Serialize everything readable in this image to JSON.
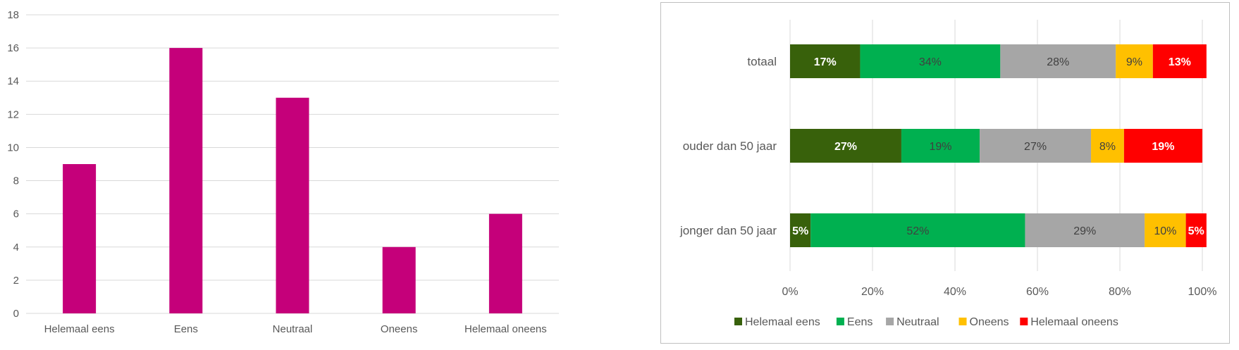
{
  "chart_data": [
    {
      "type": "bar",
      "categories": [
        "Helemaal eens",
        "Eens",
        "Neutraal",
        "Oneens",
        "Helemaal oneens"
      ],
      "values": [
        9,
        16,
        13,
        4,
        6
      ],
      "ylim": [
        0,
        18
      ],
      "yticks": [
        "0",
        "2",
        "4",
        "6",
        "8",
        "10",
        "12",
        "14",
        "16",
        "18"
      ],
      "grid": true,
      "color": "#C5007A"
    },
    {
      "type": "bar",
      "orientation": "horizontal",
      "stacked": "percent",
      "categories": [
        "totaal",
        "ouder dan 50 jaar",
        "jonger dan 50 jaar"
      ],
      "series": [
        {
          "name": "Helemaal eens",
          "color": "#38610B",
          "values": [
            17,
            27,
            5
          ],
          "labels": [
            "17%",
            "27%",
            "5%"
          ]
        },
        {
          "name": "Eens",
          "color": "#00B050",
          "values": [
            34,
            19,
            52
          ],
          "labels": [
            "34%",
            "19%",
            "52%"
          ]
        },
        {
          "name": "Neutraal",
          "color": "#A6A6A6",
          "values": [
            28,
            27,
            29
          ],
          "labels": [
            "28%",
            "27%",
            "29%"
          ]
        },
        {
          "name": "Oneens",
          "color": "#FFC000",
          "values": [
            9,
            8,
            10
          ],
          "labels": [
            "9%",
            "8%",
            "10%"
          ]
        },
        {
          "name": "Helemaal oneens",
          "color": "#FF0000",
          "values": [
            13,
            19,
            5
          ],
          "labels": [
            "13%",
            "19%",
            "5%"
          ]
        }
      ],
      "xlim": [
        0,
        100
      ],
      "xticks": [
        "0%",
        "20%",
        "40%",
        "60%",
        "80%",
        "100%"
      ],
      "grid": true,
      "legend_position": "bottom"
    }
  ]
}
